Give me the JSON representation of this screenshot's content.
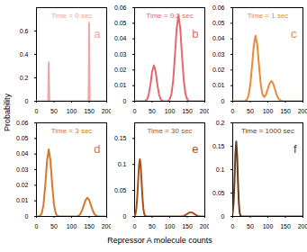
{
  "y_label": "Probability",
  "x_label": "Repressor A molecule counts",
  "chart_data": [
    {
      "type": "line",
      "title": "Time = 0 sec",
      "annotation": "a",
      "color": "#f4a4a4",
      "x": [
        0,
        33,
        34,
        35,
        36,
        37,
        148,
        149,
        150,
        151,
        152,
        200
      ],
      "values": [
        0,
        0,
        0.1,
        0.33,
        0.1,
        0,
        0,
        0.2,
        0.67,
        0.2,
        0,
        0
      ],
      "xlim": [
        0,
        200
      ],
      "xticks": [
        0,
        50,
        100,
        150,
        200
      ],
      "ylim": [
        0,
        0.8
      ],
      "yticks": [
        0,
        0.2,
        0.4,
        0.6
      ]
    },
    {
      "type": "line",
      "title": "Time = 0.2 sec",
      "annotation": "b",
      "color": "#e2686e",
      "x": [
        0,
        20,
        25,
        30,
        35,
        40,
        45,
        50,
        55,
        60,
        65,
        70,
        75,
        80,
        85,
        90,
        95,
        100,
        105,
        110,
        115,
        120,
        125,
        130,
        135,
        140,
        145,
        150,
        155,
        160,
        165,
        200
      ],
      "values": [
        0,
        0,
        0,
        0.0002,
        0.001,
        0.004,
        0.0105,
        0.019,
        0.023,
        0.019,
        0.0105,
        0.004,
        0.001,
        0.0002,
        0,
        0,
        0.0002,
        0.0012,
        0.0047,
        0.0137,
        0.0297,
        0.047,
        0.055,
        0.047,
        0.0297,
        0.0137,
        0.0047,
        0.0012,
        0.0002,
        0,
        0,
        0
      ],
      "xlim": [
        0,
        200
      ],
      "xticks": [
        0,
        50,
        100,
        150,
        200
      ],
      "ylim": [
        0,
        0.06
      ],
      "yticks": [
        0,
        0.01,
        0.02,
        0.03,
        0.04,
        0.05,
        0.06
      ]
    },
    {
      "type": "line",
      "title": "Time = 1 sec",
      "annotation": "c",
      "color": "#e88a3c",
      "x": [
        0,
        30,
        35,
        40,
        45,
        50,
        55,
        60,
        65,
        70,
        75,
        80,
        85,
        90,
        95,
        100,
        105,
        110,
        115,
        120,
        125,
        130,
        135,
        140,
        145,
        200
      ],
      "values": [
        0,
        0,
        0.0002,
        0.0009,
        0.0036,
        0.0105,
        0.0226,
        0.036,
        0.042,
        0.036,
        0.0226,
        0.0106,
        0.0042,
        0.0027,
        0.0044,
        0.0079,
        0.0115,
        0.013,
        0.0115,
        0.0079,
        0.0042,
        0.0018,
        0.0006,
        0.0001,
        0,
        0
      ],
      "xlim": [
        0,
        200
      ],
      "xticks": [
        0,
        50,
        100,
        150,
        200
      ],
      "ylim": [
        0,
        0.06
      ],
      "yticks": [
        0,
        0.01,
        0.02,
        0.03,
        0.04,
        0.05,
        0.06
      ]
    },
    {
      "type": "line",
      "title": "Time = 3 sec",
      "annotation": "d",
      "color": "#d4782c",
      "x": [
        0,
        5,
        10,
        15,
        20,
        25,
        30,
        35,
        40,
        45,
        50,
        55,
        60,
        65,
        115,
        120,
        125,
        130,
        135,
        140,
        145,
        150,
        155,
        160,
        165,
        170,
        175,
        200
      ],
      "values": [
        0,
        0,
        0.0003,
        0.0019,
        0.0074,
        0.0197,
        0.0354,
        0.043,
        0.0354,
        0.0197,
        0.0074,
        0.0019,
        0.0003,
        0,
        0,
        0.0005,
        0.0016,
        0.0039,
        0.0073,
        0.0106,
        0.012,
        0.0106,
        0.0073,
        0.0039,
        0.0016,
        0.0005,
        0,
        0
      ],
      "xlim": [
        0,
        200
      ],
      "xticks": [
        0,
        50,
        100,
        150,
        200
      ],
      "ylim": [
        0,
        0.06
      ],
      "yticks": [
        0,
        0.01,
        0.02,
        0.03,
        0.04,
        0.05,
        0.06
      ]
    },
    {
      "type": "line",
      "title": "Time = 30 sec",
      "annotation": "e",
      "color": "#a8501c",
      "x": [
        0,
        2.5,
        5,
        7.5,
        10,
        12.5,
        15,
        17.5,
        20,
        22.5,
        25,
        27.5,
        30,
        35,
        130,
        135,
        140,
        145,
        150,
        155,
        160,
        165,
        170,
        175,
        180,
        185,
        190,
        200
      ],
      "values": [
        0.0012,
        0.0048,
        0.0149,
        0.0357,
        0.0667,
        0.097,
        0.11,
        0.097,
        0.0667,
        0.0357,
        0.0149,
        0.0048,
        0.0012,
        0,
        0,
        0.0004,
        0.0011,
        0.0026,
        0.0049,
        0.0071,
        0.008,
        0.0071,
        0.0049,
        0.0026,
        0.0011,
        0.0004,
        0,
        0
      ],
      "xlim": [
        0,
        200
      ],
      "xticks": [
        0,
        50,
        100,
        150,
        200
      ],
      "ylim": [
        0,
        0.18
      ],
      "yticks": [
        0,
        0.05,
        0.1,
        0.15
      ]
    },
    {
      "type": "line",
      "title": "Time = 1000 sec",
      "annotation": "f",
      "color": "#6b3a1e",
      "x": [
        0,
        2.5,
        5,
        7.5,
        10,
        12.5,
        15,
        17.5,
        20,
        22.5,
        25,
        30,
        200
      ],
      "values": [
        0.007,
        0.028,
        0.073,
        0.132,
        0.16,
        0.132,
        0.073,
        0.028,
        0.007,
        0.0012,
        0.0001,
        0,
        0
      ],
      "xlim": [
        0,
        200
      ],
      "xticks": [
        0,
        50,
        100,
        150,
        200
      ],
      "ylim": [
        0,
        0.2
      ],
      "yticks": [
        0,
        0.05,
        0.1,
        0.15,
        0.2
      ]
    }
  ]
}
